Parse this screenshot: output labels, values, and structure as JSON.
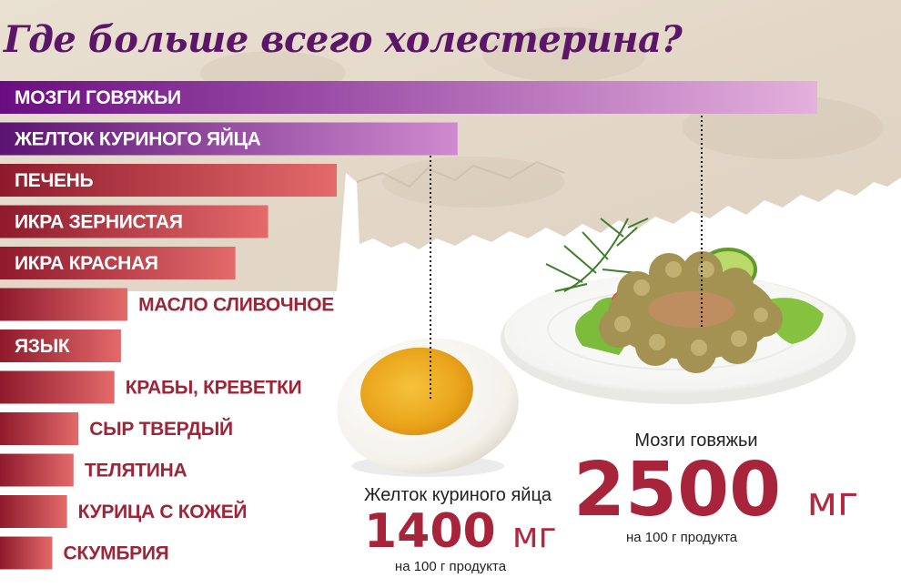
{
  "title": "Где больше всего холестерина?",
  "chart_data": {
    "type": "bar",
    "orientation": "horizontal",
    "title": "Где больше всего холестерина?",
    "unit": "мг на 100 г продукта",
    "categories": [
      "МОЗГИ ГОВЯЖЬИ",
      "ЖЕЛТОК КУРИНОГО ЯЙЦА",
      "ПЕЧЕНЬ",
      "ИКРА ЗЕРНИСТАЯ",
      "ИКРА КРАСНАЯ",
      "МАСЛО СЛИВОЧНОЕ",
      "ЯЗЫК",
      "КРАБЫ, КРЕВЕТКИ",
      "СЫР ТВЕРДЫЙ",
      "ТЕЛЯТИНА",
      "КУРИЦА С КОЖЕЙ",
      "СКУМБРИЯ"
    ],
    "values": [
      2500,
      1400,
      1030,
      820,
      720,
      390,
      370,
      350,
      240,
      225,
      205,
      160
    ],
    "colors": {
      "brain_bar": [
        "#6a0d82",
        "#e4b0dc"
      ],
      "yolk_bar": [
        "#5c1473",
        "#d08ad0"
      ],
      "other_bars": [
        "#8e1a2c",
        "#e46a6a"
      ],
      "label_inside": "#ffffff",
      "label_outside": "#9e2438"
    }
  },
  "callouts": {
    "brain": {
      "name": "Мозги говяжьи",
      "value": "2500",
      "unit": "мг",
      "per": "на 100 г продукта"
    },
    "yolk": {
      "name": "Желток куриного яйца",
      "value": "1400",
      "unit": "мг",
      "per": "на 100 г продукта"
    }
  },
  "images": {
    "egg": "boiled-egg-half",
    "plate": "plate-with-beef-brains"
  }
}
